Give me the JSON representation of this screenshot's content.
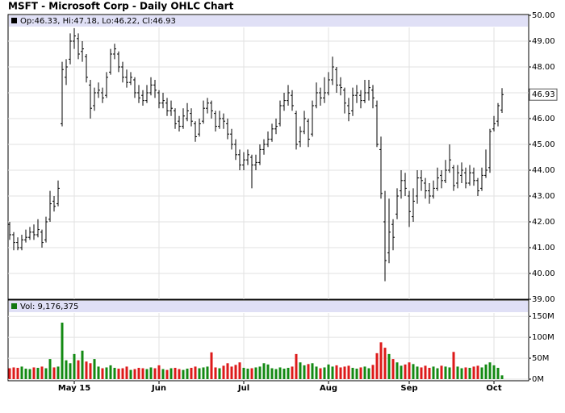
{
  "title": "MSFT - Microsoft Corp - Daily OHLC Chart",
  "chart_data": [
    {
      "type": "ohlc",
      "info": "Op:46.33, Hi:47.18, Lo:46.22, Cl:46.93",
      "color": "#000000",
      "ylim": [
        39,
        50
      ],
      "yticks": [
        {
          "value": 50,
          "label": "50.00"
        },
        {
          "value": 49,
          "label": "49.00"
        },
        {
          "value": 48,
          "label": "48.00"
        },
        {
          "value": 47,
          "label": "47.00"
        },
        {
          "value": 46,
          "label": "46.00"
        },
        {
          "value": 45,
          "label": "45.00"
        },
        {
          "value": 44,
          "label": "44.00"
        },
        {
          "value": 43,
          "label": "43.00"
        },
        {
          "value": 42,
          "label": "42.00"
        },
        {
          "value": 41,
          "label": "41.00"
        },
        {
          "value": 40,
          "label": "40.00"
        },
        {
          "value": 39,
          "label": "39.00"
        }
      ],
      "grid": true,
      "categories": [
        null,
        null,
        null,
        null,
        null,
        null,
        null,
        null,
        null,
        null,
        null,
        null,
        null,
        null,
        null,
        null,
        "May 15",
        null,
        null,
        null,
        null,
        null,
        null,
        null,
        null,
        null,
        null,
        null,
        null,
        null,
        null,
        null,
        null,
        null,
        null,
        null,
        null,
        "Jun",
        null,
        null,
        null,
        null,
        null,
        null,
        null,
        null,
        null,
        null,
        null,
        null,
        null,
        null,
        null,
        null,
        null,
        null,
        null,
        null,
        "Jul",
        null,
        null,
        null,
        null,
        null,
        null,
        null,
        null,
        null,
        null,
        null,
        null,
        null,
        null,
        null,
        null,
        null,
        null,
        null,
        null,
        "Aug",
        null,
        null,
        null,
        null,
        null,
        null,
        null,
        null,
        null,
        null,
        null,
        null,
        null,
        null,
        null,
        null,
        null,
        null,
        null,
        "Sep",
        null,
        null,
        null,
        null,
        null,
        null,
        null,
        null,
        null,
        null,
        null,
        null,
        null,
        null,
        null,
        null,
        null,
        null,
        null,
        null,
        "Oct",
        null,
        null
      ],
      "ohlc": [
        [
          41.9,
          42.0,
          41.3,
          41.5
        ],
        [
          41.5,
          41.6,
          40.9,
          41.2
        ],
        [
          41.2,
          41.4,
          40.9,
          41.0
        ],
        [
          41.0,
          41.5,
          40.9,
          41.3
        ],
        [
          41.3,
          41.7,
          41.2,
          41.4
        ],
        [
          41.4,
          41.8,
          41.3,
          41.6
        ],
        [
          41.6,
          41.9,
          41.3,
          41.5
        ],
        [
          41.5,
          42.1,
          41.4,
          41.7
        ],
        [
          41.6,
          41.7,
          41.0,
          41.2
        ],
        [
          41.3,
          42.2,
          41.2,
          42.0
        ],
        [
          42.1,
          43.2,
          42.0,
          42.7
        ],
        [
          42.8,
          43.0,
          42.4,
          42.6
        ],
        [
          42.7,
          43.6,
          42.6,
          43.3
        ],
        [
          45.8,
          48.2,
          45.7,
          47.9
        ],
        [
          47.6,
          48.3,
          47.3,
          48.0
        ],
        [
          48.3,
          49.3,
          48.1,
          49.0
        ],
        [
          49.0,
          49.5,
          48.7,
          49.2
        ],
        [
          49.1,
          49.3,
          48.3,
          48.5
        ],
        [
          48.6,
          49.0,
          48.2,
          48.7
        ],
        [
          48.4,
          48.5,
          47.4,
          47.6
        ],
        [
          47.3,
          47.5,
          46.0,
          46.4
        ],
        [
          46.5,
          47.2,
          46.3,
          47.0
        ],
        [
          47.0,
          47.4,
          46.8,
          47.1
        ],
        [
          47.0,
          47.2,
          46.6,
          46.8
        ],
        [
          46.9,
          47.8,
          46.8,
          47.6
        ],
        [
          47.8,
          48.7,
          47.7,
          48.5
        ],
        [
          48.5,
          48.9,
          48.3,
          48.7
        ],
        [
          48.5,
          48.6,
          47.8,
          48.0
        ],
        [
          48.0,
          48.2,
          47.4,
          47.6
        ],
        [
          47.6,
          47.9,
          47.2,
          47.4
        ],
        [
          47.4,
          47.8,
          47.3,
          47.6
        ],
        [
          47.5,
          47.6,
          46.8,
          47.0
        ],
        [
          47.0,
          47.3,
          46.6,
          46.8
        ],
        [
          46.9,
          47.1,
          46.5,
          46.7
        ],
        [
          46.7,
          47.3,
          46.6,
          47.0
        ],
        [
          47.0,
          47.6,
          46.9,
          47.3
        ],
        [
          47.3,
          47.5,
          46.8,
          47.1
        ],
        [
          47.0,
          47.1,
          46.4,
          46.6
        ],
        [
          46.6,
          47.0,
          46.4,
          46.7
        ],
        [
          46.6,
          46.8,
          46.1,
          46.3
        ],
        [
          46.3,
          46.7,
          46.1,
          46.4
        ],
        [
          46.3,
          46.4,
          45.6,
          45.8
        ],
        [
          45.9,
          46.1,
          45.5,
          45.7
        ],
        [
          45.7,
          46.4,
          45.6,
          46.1
        ],
        [
          46.0,
          46.6,
          45.9,
          46.3
        ],
        [
          46.2,
          46.4,
          45.7,
          45.9
        ],
        [
          45.8,
          45.9,
          45.1,
          45.3
        ],
        [
          45.4,
          46.0,
          45.3,
          45.8
        ],
        [
          45.9,
          46.7,
          45.8,
          46.4
        ],
        [
          46.4,
          46.8,
          46.2,
          46.6
        ],
        [
          46.6,
          46.7,
          46.0,
          46.3
        ],
        [
          46.2,
          46.3,
          45.5,
          45.7
        ],
        [
          45.7,
          46.3,
          45.6,
          46.0
        ],
        [
          46.0,
          46.2,
          45.6,
          45.9
        ],
        [
          45.8,
          46.0,
          45.2,
          45.4
        ],
        [
          45.4,
          45.6,
          44.8,
          45.0
        ],
        [
          45.0,
          45.2,
          44.4,
          44.6
        ],
        [
          44.6,
          44.8,
          44.0,
          44.2
        ],
        [
          44.2,
          44.7,
          44.0,
          44.4
        ],
        [
          44.4,
          44.8,
          44.2,
          44.6
        ],
        [
          44.5,
          44.6,
          43.3,
          44.2
        ],
        [
          44.2,
          44.6,
          44.0,
          44.3
        ],
        [
          44.3,
          45.0,
          44.2,
          44.8
        ],
        [
          44.8,
          45.2,
          44.6,
          45.0
        ],
        [
          45.0,
          45.5,
          44.9,
          45.2
        ],
        [
          45.2,
          45.8,
          45.1,
          45.6
        ],
        [
          45.6,
          46.0,
          45.4,
          45.7
        ],
        [
          45.8,
          46.7,
          45.7,
          46.5
        ],
        [
          46.5,
          47.0,
          46.3,
          46.7
        ],
        [
          46.7,
          47.3,
          46.5,
          47.0
        ],
        [
          46.9,
          47.1,
          46.3,
          46.5
        ],
        [
          46.2,
          46.3,
          44.8,
          45.0
        ],
        [
          45.1,
          45.7,
          44.9,
          45.5
        ],
        [
          45.5,
          46.3,
          45.4,
          46.0
        ],
        [
          45.9,
          46.0,
          44.9,
          45.2
        ],
        [
          45.4,
          46.7,
          45.3,
          46.5
        ],
        [
          46.5,
          47.4,
          46.4,
          47.0
        ],
        [
          47.0,
          47.2,
          46.5,
          46.8
        ],
        [
          46.8,
          47.6,
          46.6,
          47.0
        ],
        [
          47.0,
          47.8,
          46.9,
          47.5
        ],
        [
          47.5,
          48.4,
          47.3,
          48.0
        ],
        [
          47.9,
          48.0,
          47.0,
          47.3
        ],
        [
          47.3,
          47.6,
          46.9,
          47.2
        ],
        [
          47.1,
          47.2,
          46.2,
          46.6
        ],
        [
          46.5,
          46.8,
          45.9,
          46.2
        ],
        [
          46.3,
          47.2,
          46.1,
          46.9
        ],
        [
          46.9,
          47.3,
          46.6,
          47.0
        ],
        [
          46.9,
          47.1,
          46.4,
          46.7
        ],
        [
          46.7,
          47.5,
          46.6,
          47.0
        ],
        [
          47.0,
          47.5,
          46.7,
          47.2
        ],
        [
          47.1,
          47.3,
          46.4,
          46.8
        ],
        [
          46.5,
          46.7,
          44.9,
          45.0
        ],
        [
          44.8,
          45.3,
          42.9,
          43.1
        ],
        [
          42.0,
          43.2,
          39.7,
          40.5
        ],
        [
          40.8,
          42.9,
          40.4,
          41.6
        ],
        [
          41.9,
          42.1,
          40.9,
          41.4
        ],
        [
          42.3,
          43.3,
          42.1,
          43.0
        ],
        [
          43.2,
          44.0,
          42.9,
          43.6
        ],
        [
          43.6,
          43.9,
          43.0,
          43.3
        ],
        [
          43.0,
          43.2,
          41.8,
          42.4
        ],
        [
          42.2,
          43.3,
          42.0,
          42.8
        ],
        [
          43.0,
          44.0,
          42.7,
          43.7
        ],
        [
          43.7,
          44.0,
          43.2,
          43.6
        ],
        [
          43.5,
          43.7,
          42.9,
          43.2
        ],
        [
          43.2,
          43.5,
          42.7,
          43.0
        ],
        [
          43.0,
          43.6,
          42.9,
          43.3
        ],
        [
          43.3,
          44.1,
          43.2,
          43.7
        ],
        [
          43.8,
          44.0,
          43.3,
          43.6
        ],
        [
          43.6,
          44.4,
          43.5,
          44.0
        ],
        [
          44.0,
          45.0,
          43.9,
          44.4
        ],
        [
          44.1,
          44.2,
          43.2,
          43.4
        ],
        [
          43.5,
          44.2,
          43.3,
          43.9
        ],
        [
          43.8,
          44.3,
          43.5,
          44.0
        ],
        [
          43.9,
          44.1,
          43.3,
          43.5
        ],
        [
          43.5,
          44.2,
          43.4,
          43.9
        ],
        [
          43.9,
          44.1,
          43.4,
          43.6
        ],
        [
          43.6,
          43.7,
          43.0,
          43.2
        ],
        [
          43.3,
          44.1,
          43.2,
          43.8
        ],
        [
          43.8,
          44.8,
          43.7,
          44.0
        ],
        [
          44.1,
          45.6,
          43.9,
          45.5
        ],
        [
          45.6,
          46.1,
          45.5,
          45.8
        ],
        [
          45.9,
          46.6,
          45.7,
          46.5
        ],
        [
          46.33,
          47.18,
          46.22,
          46.93
        ]
      ]
    },
    {
      "type": "bar",
      "info": "Vol: 9,176,375",
      "up_color": "#138a13",
      "down_color": "#dd1a1a",
      "ylim": [
        0,
        160
      ],
      "yticks": [
        {
          "value": 0,
          "label": "0M"
        },
        {
          "value": 50,
          "label": "50M"
        },
        {
          "value": 100,
          "label": "100M"
        },
        {
          "value": 150,
          "label": "150M"
        }
      ],
      "grid": true,
      "values": [
        26,
        28,
        27,
        30,
        25,
        24,
        28,
        27,
        30,
        26,
        48,
        28,
        30,
        135,
        45,
        38,
        60,
        45,
        68,
        42,
        38,
        48,
        30,
        26,
        28,
        33,
        27,
        25,
        26,
        30,
        22,
        24,
        27,
        26,
        24,
        28,
        26,
        33,
        24,
        22,
        26,
        27,
        24,
        22,
        25,
        27,
        30,
        26,
        28,
        30,
        64,
        28,
        26,
        32,
        38,
        30,
        34,
        40,
        27,
        25,
        26,
        28,
        30,
        38,
        35,
        26,
        24,
        28,
        25,
        27,
        30,
        60,
        40,
        33,
        36,
        38,
        30,
        26,
        28,
        35,
        30,
        33,
        28,
        30,
        32,
        27,
        25,
        28,
        30,
        26,
        34,
        62,
        88,
        75,
        60,
        48,
        40,
        32,
        35,
        40,
        36,
        30,
        28,
        32,
        27,
        30,
        26,
        32,
        30,
        28,
        65,
        30,
        26,
        28,
        27,
        30,
        32,
        28,
        35,
        40,
        33,
        27,
        9
      ]
    }
  ]
}
